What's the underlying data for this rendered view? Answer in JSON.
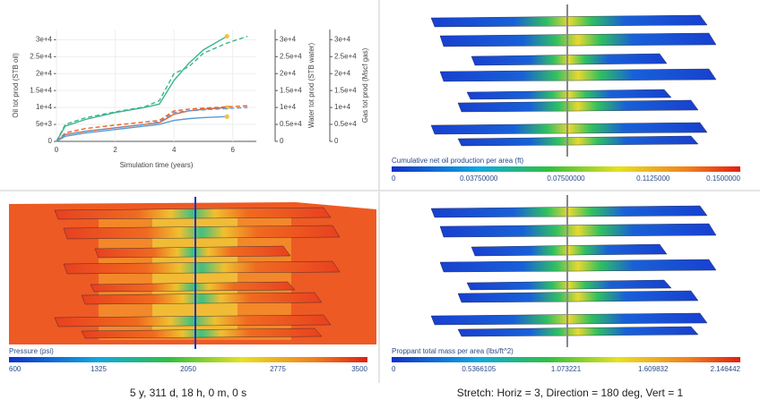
{
  "chart_data": {
    "type": "line",
    "xlabel": "Simulation time (years)",
    "ylabel": "Oil tot prod (STB oil)",
    "y2label": "Water tot prod (STB water)",
    "y3label": "Gas tot prod (Mscf gas)",
    "xlim": [
      0,
      6.8
    ],
    "xticks": [
      0,
      2,
      4,
      6
    ],
    "ylim": [
      0,
      33000
    ],
    "yticks": [
      0,
      {
        "value": 5000,
        "label": "5e+3"
      },
      {
        "value": 10000,
        "label": "1e+4"
      },
      {
        "value": 15000,
        "label": "1.5e+4"
      },
      {
        "value": 20000,
        "label": "2e+4"
      },
      {
        "value": 25000,
        "label": "2.5e+4"
      },
      {
        "value": 30000,
        "label": "3e+4"
      }
    ],
    "y2lim": [
      0,
      33000
    ],
    "y2ticks": [
      0,
      {
        "value": 5000,
        "label": "0.5e+4"
      },
      {
        "value": 10000,
        "label": "1e+4"
      },
      {
        "value": 15000,
        "label": "1.5e+4"
      },
      {
        "value": 20000,
        "label": "2e+4"
      },
      {
        "value": 25000,
        "label": "2.5e+4"
      },
      {
        "value": 30000,
        "label": "3e+4"
      }
    ],
    "y3lim": [
      0,
      33000
    ],
    "y3ticks": [
      0,
      {
        "value": 5000,
        "label": "0.5e+4"
      },
      {
        "value": 10000,
        "label": "1e+4"
      },
      {
        "value": 15000,
        "label": "1.5e+4"
      },
      {
        "value": 20000,
        "label": "2e+4"
      },
      {
        "value": 25000,
        "label": "2.5e+4"
      },
      {
        "value": 30000,
        "label": "3e+4"
      }
    ],
    "marker_color": "#f5c242",
    "series": [
      {
        "color": "#3db58a",
        "dash": false,
        "axis": "y",
        "x": [
          0,
          0.3,
          1,
          2,
          3,
          3.5,
          4,
          4.5,
          5,
          5.8
        ],
        "values": [
          0,
          4500,
          6500,
          8500,
          10000,
          11000,
          18000,
          23000,
          27000,
          31000
        ]
      },
      {
        "color": "#3db58a",
        "dash": true,
        "axis": "y",
        "x": [
          0,
          0.3,
          1,
          2,
          3,
          3.5,
          4,
          4.5,
          5,
          5.8,
          6.5
        ],
        "values": [
          0,
          5000,
          7000,
          8700,
          10200,
          12000,
          20000,
          22000,
          26000,
          29000,
          31000
        ]
      },
      {
        "color": "#e8632b",
        "dash": false,
        "axis": "y2",
        "x": [
          0,
          0.3,
          1,
          2,
          3,
          3.5,
          4,
          4.5,
          5,
          5.8
        ],
        "values": [
          0,
          2000,
          3000,
          4000,
          5000,
          5500,
          8000,
          9000,
          9500,
          10000
        ]
      },
      {
        "color": "#e8632b",
        "dash": true,
        "axis": "y2",
        "x": [
          0,
          0.3,
          1,
          2,
          3,
          3.5,
          4,
          4.5,
          5,
          5.8,
          6.5
        ],
        "values": [
          0,
          2500,
          3800,
          4800,
          5700,
          6200,
          9000,
          9500,
          9800,
          10200,
          10500
        ]
      },
      {
        "color": "#5b9bd5",
        "dash": false,
        "axis": "y3",
        "x": [
          0,
          0.3,
          1,
          2,
          3,
          3.5,
          4,
          4.5,
          5,
          5.8
        ],
        "values": [
          0,
          1500,
          2500,
          3500,
          4500,
          5000,
          6200,
          6700,
          7000,
          7300
        ]
      },
      {
        "color": "#5b9bd5",
        "dash": true,
        "axis": "y3",
        "x": [
          0,
          0.3,
          1,
          2,
          3,
          3.5,
          4,
          4.5,
          5,
          5.8,
          6.5
        ],
        "values": [
          0,
          2000,
          3000,
          4000,
          5000,
          5800,
          8500,
          9000,
          9300,
          9700,
          10000
        ]
      }
    ]
  },
  "views": [
    {
      "colorbar": {
        "label": "Cumulative net oil production per area (ft)",
        "ticks": [
          "0",
          "0.03750000",
          "0.07500000",
          "0.1125000",
          "0.1500000"
        ]
      }
    },
    {
      "colorbar": {
        "label": "Pressure (psi)",
        "ticks": [
          "600",
          "1325",
          "2050",
          "2775",
          "3500"
        ]
      }
    },
    {
      "colorbar": {
        "label": "Proppant total mass per area (lbs/ft^2)",
        "ticks": [
          "0",
          "0.5366105",
          "1.073221",
          "1.609832",
          "2.146442"
        ]
      }
    }
  ],
  "captions": [
    "5 y, 311 d, 18 h, 0 m, 0 s",
    "Stretch: Horiz = 3, Direction = 180 deg, Vert = 1"
  ]
}
